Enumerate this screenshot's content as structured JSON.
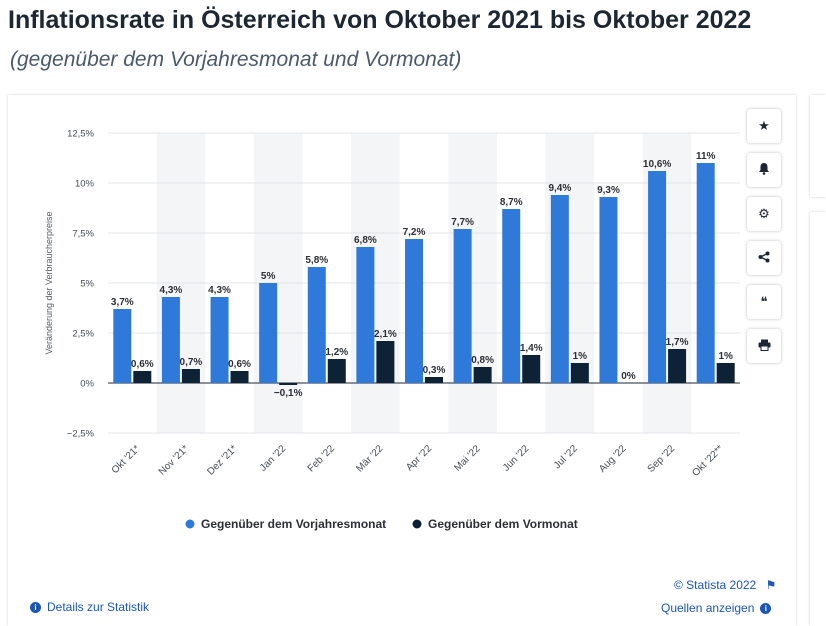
{
  "header": {
    "title": "Inflationsrate in Österreich von Oktober 2021 bis Oktober 2022",
    "subtitle": "(gegenüber dem Vorjahresmonat und Vormonat)"
  },
  "toolbar": {
    "buttons": [
      {
        "name": "favorite",
        "icon": "star-icon",
        "glyph": "★"
      },
      {
        "name": "notify",
        "icon": "bell-icon",
        "glyph": "🔔"
      },
      {
        "name": "settings",
        "icon": "gear-icon",
        "glyph": "⚙"
      },
      {
        "name": "share",
        "icon": "share-icon",
        "glyph": "<"
      },
      {
        "name": "cite",
        "icon": "quote-icon",
        "glyph": "❝"
      },
      {
        "name": "print",
        "icon": "printer-icon",
        "glyph": "⎙"
      }
    ]
  },
  "footer": {
    "details_label": "Details zur Statistik",
    "sources_label": "Quellen anzeigen",
    "copyright": "© Statista 2022",
    "info_glyph": "i",
    "flag_glyph": "⚑"
  },
  "colors": {
    "series1": "#2f7ad9",
    "series2": "#0e2236",
    "band": "#f4f5f7",
    "grid": "#e2e4e8"
  },
  "chart_data": {
    "type": "bar",
    "title": "",
    "ylabel": "Veränderung der Verbraucherpreise",
    "ylim": [
      -2.5,
      12.5
    ],
    "yticks": [
      -2.5,
      0,
      2.5,
      5,
      7.5,
      10,
      12.5
    ],
    "ytick_labels": [
      "−2,5%",
      "0%",
      "2,5%",
      "5%",
      "7,5%",
      "10%",
      "12,5%"
    ],
    "categories": [
      "Okt '21*",
      "Nov '21*",
      "Dez '21*",
      "Jan '22",
      "Feb '22",
      "Mär '22",
      "Apr '22",
      "Mai '22",
      "Jun '22",
      "Jul '22",
      "Aug '22",
      "Sep '22",
      "Okt '22**"
    ],
    "series": [
      {
        "name": "Gegenüber dem Vorjahresmonat",
        "values": [
          3.7,
          4.3,
          4.3,
          5.0,
          5.8,
          6.8,
          7.2,
          7.7,
          8.7,
          9.4,
          9.3,
          10.6,
          11.0
        ],
        "labels": [
          "3,7%",
          "4,3%",
          "4,3%",
          "5%",
          "5,8%",
          "6,8%",
          "7,2%",
          "7,7%",
          "8,7%",
          "9,4%",
          "9,3%",
          "10,6%",
          "11%"
        ]
      },
      {
        "name": "Gegenüber dem Vormonat",
        "values": [
          0.6,
          0.7,
          0.6,
          -0.1,
          1.2,
          2.1,
          0.3,
          0.8,
          1.4,
          1.0,
          0.0,
          1.7,
          1.0
        ],
        "labels": [
          "0,6%",
          "0,7%",
          "0,6%",
          "−0,1%",
          "1,2%",
          "2,1%",
          "0,3%",
          "0,8%",
          "1,4%",
          "1%",
          "0%",
          "1,7%",
          "1%"
        ]
      }
    ],
    "grid": true,
    "legend_position": "bottom"
  }
}
